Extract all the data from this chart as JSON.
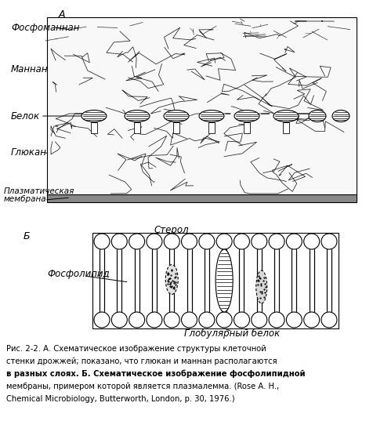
{
  "title": "",
  "fig_width": 4.76,
  "fig_height": 5.6,
  "dpi": 100,
  "bg_color": "#ffffff",
  "caption_lines": [
    "Рис. 2-2. А. Схематическое изображение структуры клеточной",
    "стенки дрожжей; показано, что глюкан и маннан располагаются",
    "в разных слоях. Б. Схематическое изображение фосфолипидной",
    "мембраны, примером которой является плазмалемма. (Rose A. H.,",
    "Chemical Microbiology, Butterworth, London, p. 30, 1976.)"
  ],
  "label_A": "А",
  "label_B": "Б",
  "label_fosfoMannan": "Фосфоманнан",
  "label_mannan": "Маннан",
  "label_belok": "Белок",
  "label_glyukan": "Глюкан",
  "label_plasma_line1": "Плазматическая",
  "label_plasma_line2": "мембрана",
  "label_fosfolipid": "Фосфолипид",
  "label_sterol": "Стерол",
  "label_globulyarny": "Глобулярный белок",
  "font_size_label": 8.5,
  "font_size_plasma": 7.5,
  "font_size_caption": 7.2,
  "font_size_section": 9
}
